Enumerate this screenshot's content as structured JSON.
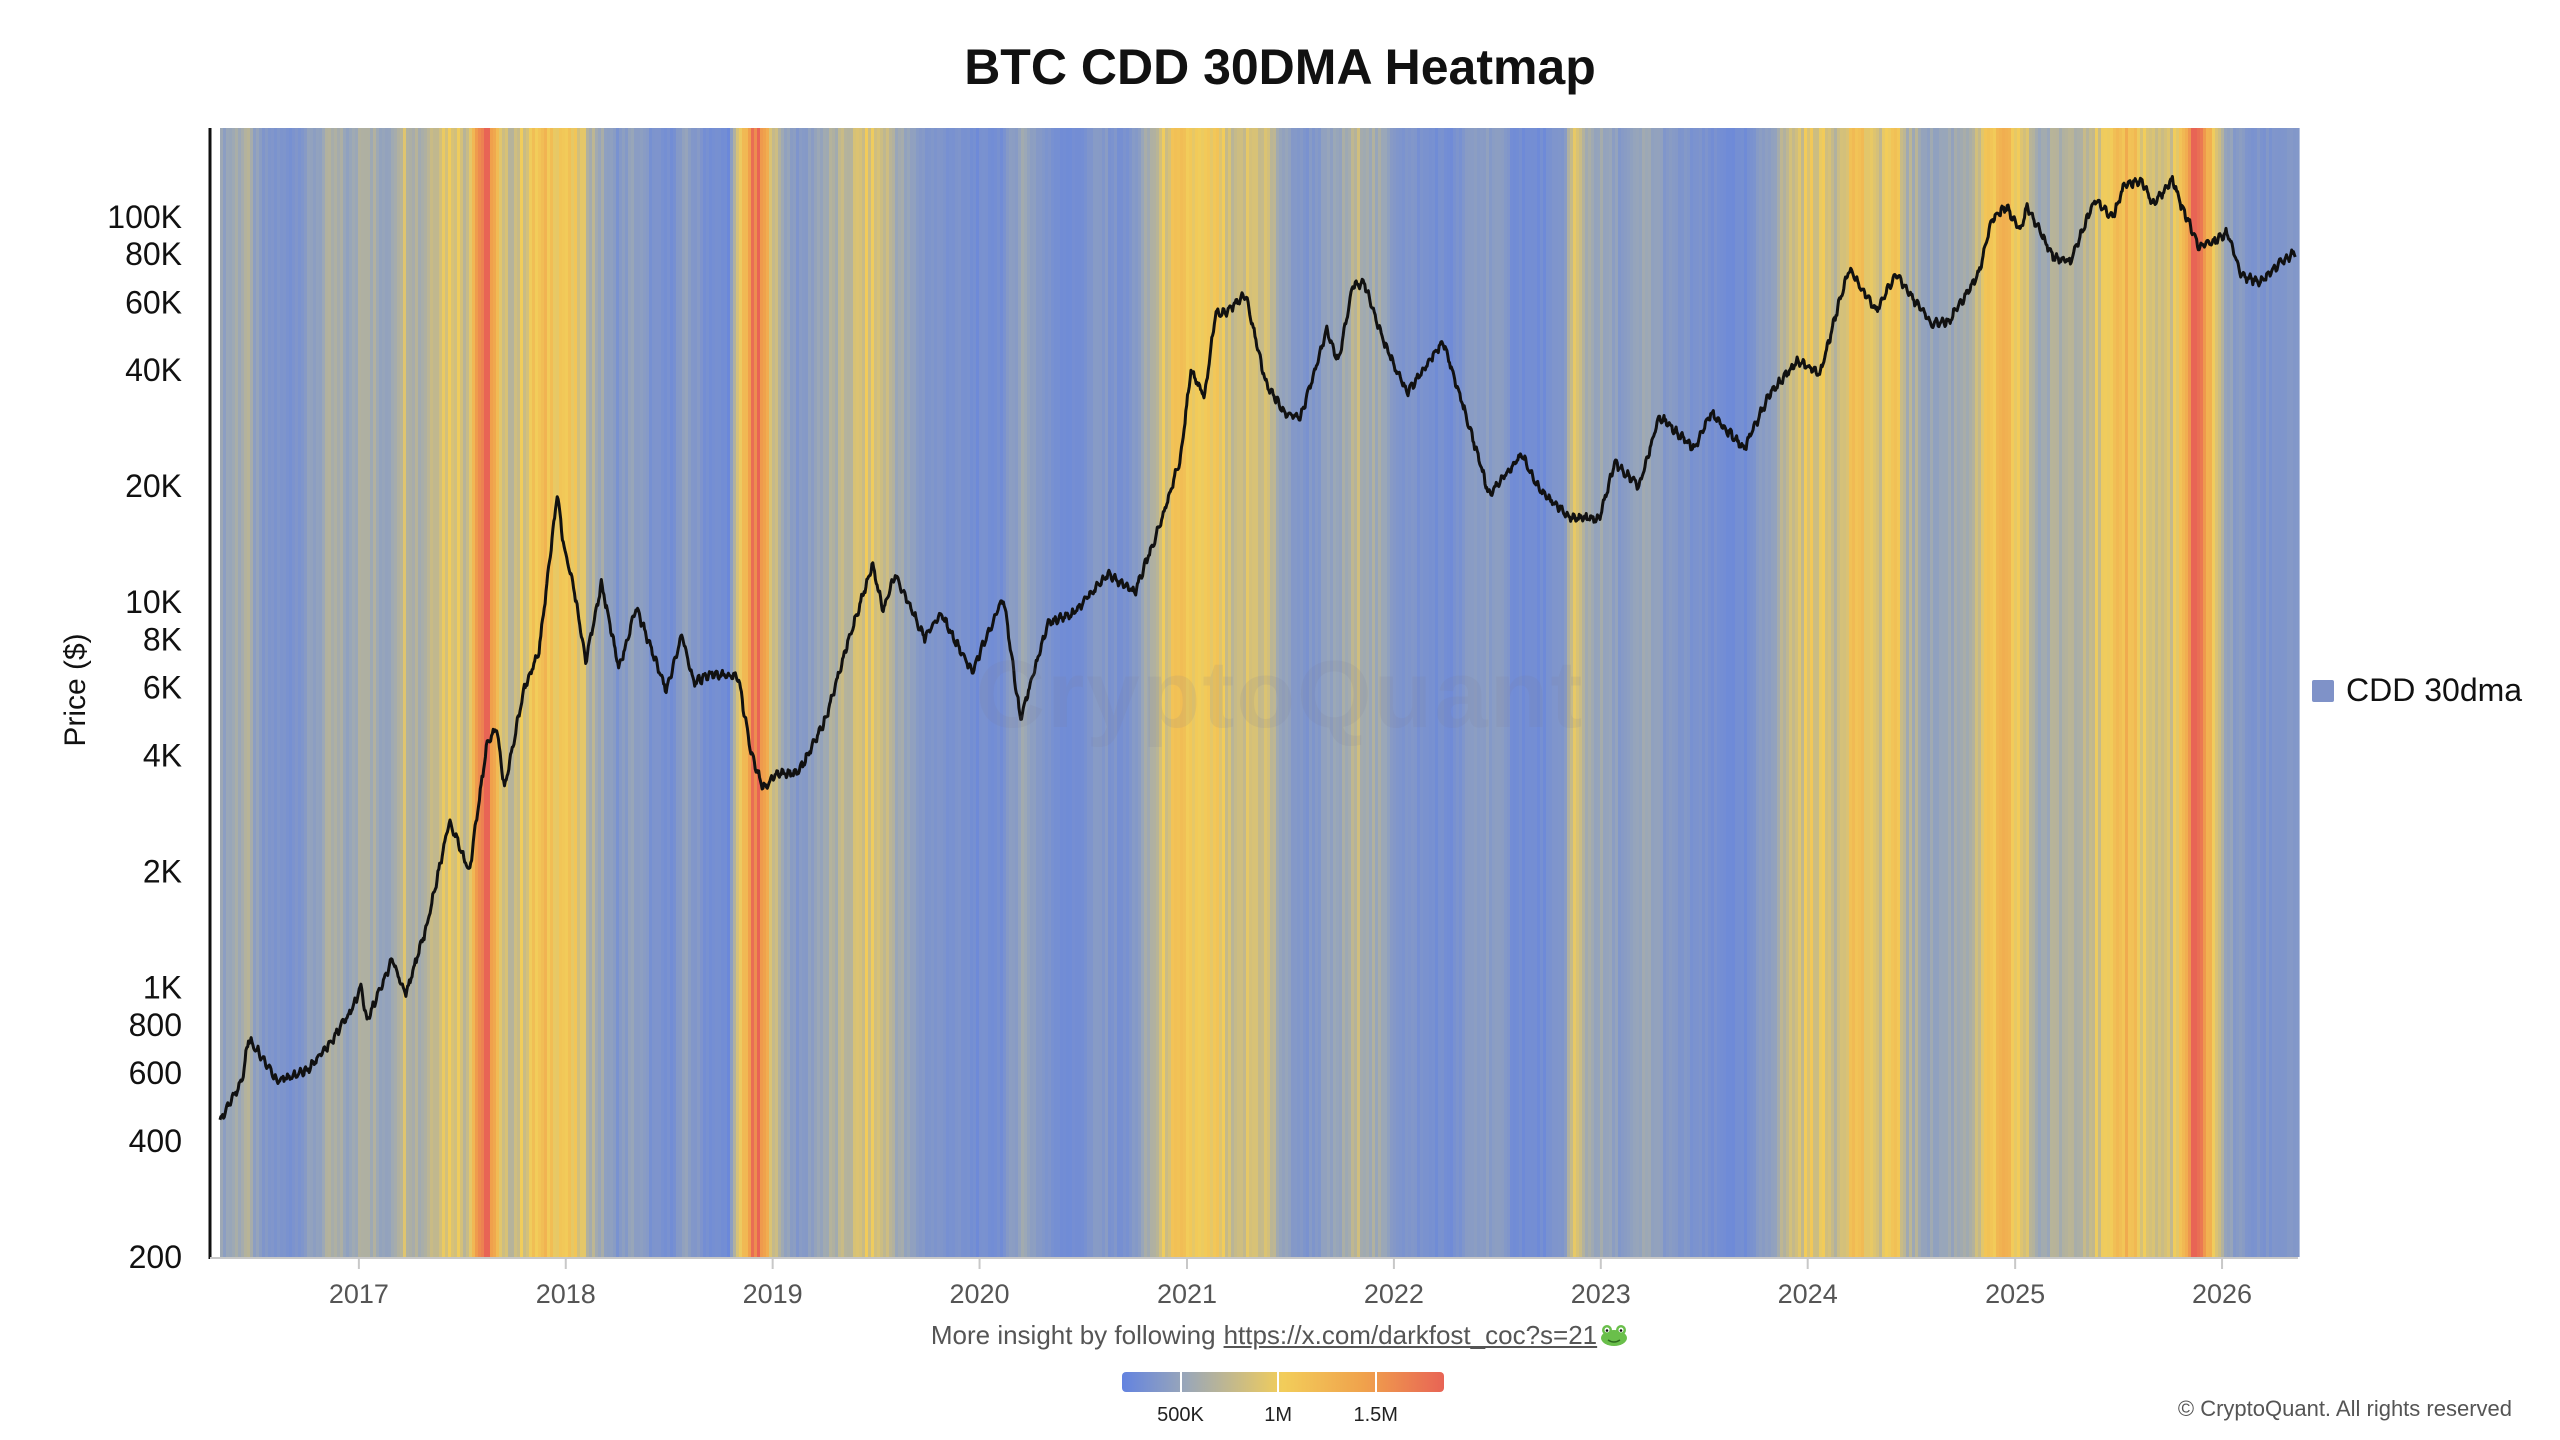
{
  "chart_data": {
    "type": "heatmap",
    "title": "BTC CDD 30DMA Heatmap",
    "xlabel": "",
    "ylabel": "Price ($)",
    "y_scale": "log",
    "ylim": [
      200,
      170000
    ],
    "xlim": [
      "2016-05-01",
      "2026-05-15"
    ],
    "y_ticks": [
      {
        "value": 200,
        "label": "200"
      },
      {
        "value": 400,
        "label": "400"
      },
      {
        "value": 600,
        "label": "600"
      },
      {
        "value": 800,
        "label": "800"
      },
      {
        "value": 1000,
        "label": "1K"
      },
      {
        "value": 2000,
        "label": "2K"
      },
      {
        "value": 4000,
        "label": "4K"
      },
      {
        "value": 6000,
        "label": "6K"
      },
      {
        "value": 8000,
        "label": "8K"
      },
      {
        "value": 10000,
        "label": "10K"
      },
      {
        "value": 20000,
        "label": "20K"
      },
      {
        "value": 40000,
        "label": "40K"
      },
      {
        "value": 60000,
        "label": "60K"
      },
      {
        "value": 80000,
        "label": "80K"
      },
      {
        "value": 100000,
        "label": "100K"
      }
    ],
    "x_ticks": [
      {
        "value": "2017-01-01",
        "label": "2017"
      },
      {
        "value": "2018-01-01",
        "label": "2018"
      },
      {
        "value": "2019-01-01",
        "label": "2019"
      },
      {
        "value": "2020-01-01",
        "label": "2020"
      },
      {
        "value": "2021-01-01",
        "label": "2021"
      },
      {
        "value": "2022-01-01",
        "label": "2022"
      },
      {
        "value": "2023-01-01",
        "label": "2023"
      },
      {
        "value": "2024-01-01",
        "label": "2024"
      },
      {
        "value": "2025-01-01",
        "label": "2025"
      },
      {
        "value": "2026-01-01",
        "label": "2026"
      }
    ],
    "price_series": {
      "name": "",
      "color": "#111111",
      "points": [
        [
          "2016-05-01",
          450
        ],
        [
          "2016-06-10",
          580
        ],
        [
          "2016-06-20",
          740
        ],
        [
          "2016-07-15",
          660
        ],
        [
          "2016-08-10",
          575
        ],
        [
          "2016-10-01",
          610
        ],
        [
          "2016-11-15",
          730
        ],
        [
          "2016-12-20",
          880
        ],
        [
          "2017-01-05",
          1000
        ],
        [
          "2017-01-15",
          820
        ],
        [
          "2017-03-01",
          1180
        ],
        [
          "2017-03-25",
          960
        ],
        [
          "2017-05-01",
          1450
        ],
        [
          "2017-06-10",
          2700
        ],
        [
          "2017-07-15",
          2000
        ],
        [
          "2017-08-15",
          4300
        ],
        [
          "2017-09-01",
          4700
        ],
        [
          "2017-09-15",
          3300
        ],
        [
          "2017-10-20",
          6000
        ],
        [
          "2017-11-15",
          7500
        ],
        [
          "2017-12-17",
          19000
        ],
        [
          "2017-12-30",
          13500
        ],
        [
          "2018-01-15",
          11000
        ],
        [
          "2018-02-05",
          7000
        ],
        [
          "2018-03-05",
          11200
        ],
        [
          "2018-04-05",
          6700
        ],
        [
          "2018-05-05",
          9700
        ],
        [
          "2018-06-28",
          5900
        ],
        [
          "2018-07-25",
          8200
        ],
        [
          "2018-08-15",
          6200
        ],
        [
          "2018-09-15",
          6500
        ],
        [
          "2018-11-01",
          6400
        ],
        [
          "2018-11-25",
          4000
        ],
        [
          "2018-12-15",
          3300
        ],
        [
          "2019-01-10",
          3600
        ],
        [
          "2019-02-15",
          3600
        ],
        [
          "2019-04-05",
          5000
        ],
        [
          "2019-05-15",
          8000
        ],
        [
          "2019-06-26",
          12500
        ],
        [
          "2019-07-15",
          9500
        ],
        [
          "2019-08-05",
          11800
        ],
        [
          "2019-09-26",
          8100
        ],
        [
          "2019-10-26",
          9300
        ],
        [
          "2019-12-18",
          6600
        ],
        [
          "2020-02-12",
          10300
        ],
        [
          "2020-03-13",
          5000
        ],
        [
          "2020-05-01",
          8800
        ],
        [
          "2020-06-15",
          9400
        ],
        [
          "2020-08-15",
          11800
        ],
        [
          "2020-10-01",
          10600
        ],
        [
          "2020-11-15",
          16000
        ],
        [
          "2020-12-20",
          23500
        ],
        [
          "2021-01-08",
          40000
        ],
        [
          "2021-02-01",
          34000
        ],
        [
          "2021-02-20",
          56000
        ],
        [
          "2021-03-15",
          57000
        ],
        [
          "2021-04-14",
          63000
        ],
        [
          "2021-05-20",
          37000
        ],
        [
          "2021-06-22",
          31000
        ],
        [
          "2021-07-20",
          30000
        ],
        [
          "2021-09-05",
          51000
        ],
        [
          "2021-09-25",
          42000
        ],
        [
          "2021-10-20",
          66000
        ],
        [
          "2021-11-10",
          67500
        ],
        [
          "2021-12-15",
          47000
        ],
        [
          "2022-01-24",
          35000
        ],
        [
          "2022-03-29",
          47500
        ],
        [
          "2022-05-10",
          30000
        ],
        [
          "2022-06-18",
          19000
        ],
        [
          "2022-08-15",
          24200
        ],
        [
          "2022-09-15",
          19500
        ],
        [
          "2022-11-10",
          16500
        ],
        [
          "2022-12-30",
          16500
        ],
        [
          "2023-01-25",
          23000
        ],
        [
          "2023-03-10",
          20000
        ],
        [
          "2023-04-14",
          30500
        ],
        [
          "2023-06-15",
          25000
        ],
        [
          "2023-07-15",
          31000
        ],
        [
          "2023-09-11",
          25000
        ],
        [
          "2023-10-25",
          34500
        ],
        [
          "2023-12-15",
          42500
        ],
        [
          "2024-01-23",
          39000
        ],
        [
          "2024-02-28",
          62000
        ],
        [
          "2024-03-14",
          73000
        ],
        [
          "2024-05-01",
          57000
        ],
        [
          "2024-06-05",
          71000
        ],
        [
          "2024-08-05",
          53000
        ],
        [
          "2024-09-06",
          53500
        ],
        [
          "2024-10-28",
          71000
        ],
        [
          "2024-11-22",
          99000
        ],
        [
          "2024-12-17",
          106000
        ],
        [
          "2025-01-10",
          92000
        ],
        [
          "2025-01-22",
          106000
        ],
        [
          "2025-03-10",
          78500
        ],
        [
          "2025-04-08",
          76500
        ],
        [
          "2025-05-22",
          111000
        ],
        [
          "2025-06-22",
          100000
        ],
        [
          "2025-07-14",
          122000
        ],
        [
          "2025-08-14",
          123000
        ],
        [
          "2025-09-01",
          108000
        ],
        [
          "2025-10-06",
          125000
        ],
        [
          "2025-10-20",
          108000
        ],
        [
          "2025-11-21",
          84000
        ],
        [
          "2025-12-15",
          86000
        ],
        [
          "2026-01-10",
          91000
        ],
        [
          "2026-02-05",
          70000
        ],
        [
          "2026-03-10",
          68000
        ],
        [
          "2026-04-10",
          75000
        ],
        [
          "2026-05-10",
          81000
        ]
      ]
    },
    "heat_series": {
      "name": "CDD 30dma",
      "legend_color": "#7f92c8",
      "colorbar": {
        "ticks": [
          {
            "value": 500000,
            "label": "500K"
          },
          {
            "value": 1000000,
            "label": "1M"
          },
          {
            "value": 1500000,
            "label": "1.5M"
          }
        ],
        "range": [
          200000,
          1850000
        ],
        "colors": [
          "#6383e0",
          "#9aa7b8",
          "#f2cd5a",
          "#f0a24c",
          "#e86455"
        ]
      },
      "points": [
        [
          "2016-05-01",
          550000
        ],
        [
          "2016-06-15",
          720000
        ],
        [
          "2016-07-15",
          420000
        ],
        [
          "2016-09-01",
          380000
        ],
        [
          "2016-10-10",
          520000
        ],
        [
          "2016-11-15",
          680000
        ],
        [
          "2016-12-20",
          560000
        ],
        [
          "2017-01-10",
          820000
        ],
        [
          "2017-02-15",
          520000
        ],
        [
          "2017-03-20",
          880000
        ],
        [
          "2017-04-20",
          680000
        ],
        [
          "2017-05-25",
          960000
        ],
        [
          "2017-06-20",
          1000000
        ],
        [
          "2017-07-10",
          820000
        ],
        [
          "2017-08-01",
          1650000
        ],
        [
          "2017-08-20",
          1750000
        ],
        [
          "2017-09-10",
          780000
        ],
        [
          "2017-10-10",
          880000
        ],
        [
          "2017-11-05",
          1050000
        ],
        [
          "2017-12-01",
          1150000
        ],
        [
          "2017-12-25",
          1100000
        ],
        [
          "2018-01-20",
          960000
        ],
        [
          "2018-02-25",
          680000
        ],
        [
          "2018-04-01",
          420000
        ],
        [
          "2018-05-01",
          560000
        ],
        [
          "2018-06-01",
          380000
        ],
        [
          "2018-07-01",
          330000
        ],
        [
          "2018-08-01",
          520000
        ],
        [
          "2018-09-05",
          360000
        ],
        [
          "2018-10-15",
          300000
        ],
        [
          "2018-11-20",
          1480000
        ],
        [
          "2018-12-05",
          1700000
        ],
        [
          "2018-12-20",
          1300000
        ],
        [
          "2019-01-10",
          700000
        ],
        [
          "2019-02-20",
          420000
        ],
        [
          "2019-03-25",
          620000
        ],
        [
          "2019-05-01",
          720000
        ],
        [
          "2019-06-20",
          940000
        ],
        [
          "2019-07-20",
          820000
        ],
        [
          "2019-08-25",
          560000
        ],
        [
          "2019-10-01",
          420000
        ],
        [
          "2019-11-15",
          380000
        ],
        [
          "2020-01-01",
          320000
        ],
        [
          "2020-02-15",
          360000
        ],
        [
          "2020-03-15",
          640000
        ],
        [
          "2020-05-01",
          380000
        ],
        [
          "2020-06-15",
          300000
        ],
        [
          "2020-08-01",
          460000
        ],
        [
          "2020-09-15",
          340000
        ],
        [
          "2020-11-01",
          700000
        ],
        [
          "2020-12-01",
          1000000
        ],
        [
          "2021-01-01",
          1080000
        ],
        [
          "2021-01-25",
          950000
        ],
        [
          "2021-02-25",
          1020000
        ],
        [
          "2021-03-25",
          720000
        ],
        [
          "2021-04-20",
          900000
        ],
        [
          "2021-05-20",
          880000
        ],
        [
          "2021-06-20",
          560000
        ],
        [
          "2021-07-25",
          400000
        ],
        [
          "2021-09-01",
          500000
        ],
        [
          "2021-10-01",
          600000
        ],
        [
          "2021-11-01",
          780000
        ],
        [
          "2021-12-05",
          620000
        ],
        [
          "2022-01-15",
          420000
        ],
        [
          "2022-03-01",
          360000
        ],
        [
          "2022-04-15",
          320000
        ],
        [
          "2022-05-20",
          480000
        ],
        [
          "2022-06-25",
          520000
        ],
        [
          "2022-08-01",
          340000
        ],
        [
          "2022-09-15",
          300000
        ],
        [
          "2022-10-25",
          400000
        ],
        [
          "2022-11-15",
          920000
        ],
        [
          "2022-12-05",
          700000
        ],
        [
          "2023-01-10",
          560000
        ],
        [
          "2023-02-15",
          460000
        ],
        [
          "2023-03-25",
          620000
        ],
        [
          "2023-05-01",
          440000
        ],
        [
          "2023-06-15",
          380000
        ],
        [
          "2023-08-01",
          320000
        ],
        [
          "2023-09-15",
          300000
        ],
        [
          "2023-11-01",
          600000
        ],
        [
          "2023-12-10",
          880000
        ],
        [
          "2024-01-15",
          980000
        ],
        [
          "2024-02-20",
          820000
        ],
        [
          "2024-03-10",
          1050000
        ],
        [
          "2024-04-01",
          1200000
        ],
        [
          "2024-04-25",
          820000
        ],
        [
          "2024-06-01",
          1080000
        ],
        [
          "2024-06-25",
          720000
        ],
        [
          "2024-08-10",
          560000
        ],
        [
          "2024-09-20",
          640000
        ],
        [
          "2024-10-25",
          780000
        ],
        [
          "2024-11-20",
          1100000
        ],
        [
          "2024-12-15",
          1200000
        ],
        [
          "2025-01-10",
          960000
        ],
        [
          "2025-02-15",
          620000
        ],
        [
          "2025-03-25",
          720000
        ],
        [
          "2025-05-01",
          820000
        ],
        [
          "2025-06-20",
          960000
        ],
        [
          "2025-07-20",
          1300000
        ],
        [
          "2025-08-15",
          960000
        ],
        [
          "2025-09-15",
          820000
        ],
        [
          "2025-10-20",
          1000000
        ],
        [
          "2025-11-10",
          1700000
        ],
        [
          "2025-12-01",
          1600000
        ],
        [
          "2025-12-25",
          800000
        ],
        [
          "2026-01-20",
          500000
        ],
        [
          "2026-03-01",
          380000
        ],
        [
          "2026-04-10",
          420000
        ],
        [
          "2026-05-15",
          460000
        ]
      ]
    },
    "legend_position": "right",
    "grid": false
  },
  "footer": {
    "insight_text": "More insight by following",
    "insight_link": "https://x.com/darkfost_coc?s=21",
    "copyright": "© CryptoQuant. All rights reserved"
  },
  "watermark": "CryptoQuant"
}
